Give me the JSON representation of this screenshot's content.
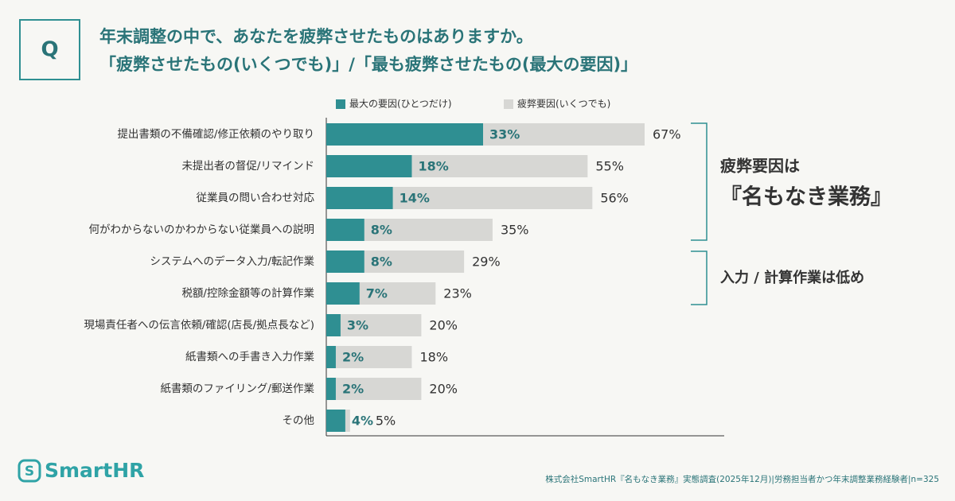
{
  "chart_data": {
    "type": "bar",
    "q_label": "Q",
    "title": "年末調整の中で、あなたを疲弊させたものはありますか。",
    "subtitle": "「疲弊させたもの(いくつでも)」/「最も疲弊させたもの(最大の要因)」",
    "categories": [
      "提出書類の不備確認/修正依頼のやり取り",
      "未提出者の督促/リマインド",
      "従業員の問い合わせ対応",
      "何がわからないのかわからない従業員への説明",
      "システムへのデータ入力/転記作業",
      "税額/控除金額等の計算作業",
      "現場責任者への伝言依頼/確認(店長/拠点長など)",
      "紙書類への手書き入力作業",
      "紙書類のファイリング/郵送作業",
      "その他"
    ],
    "series": [
      {
        "name": "最大の要因(ひとつだけ)",
        "color": "#2f8f92",
        "values": [
          33,
          18,
          14,
          8,
          8,
          7,
          3,
          2,
          2,
          4
        ],
        "value_labels": [
          "33%",
          "18%",
          "14%",
          "8%",
          "8%",
          "7%",
          "3%",
          "2%",
          "2%",
          "4%"
        ]
      },
      {
        "name": "疲弊要因(いくつでも)",
        "color": "#d7d7d4",
        "values": [
          67,
          55,
          56,
          35,
          29,
          23,
          20,
          18,
          20,
          5
        ],
        "value_labels": [
          "67%",
          "55%",
          "56%",
          "35%",
          "29%",
          "23%",
          "20%",
          "18%",
          "20%",
          "5%"
        ]
      }
    ],
    "annotations": [
      "疲弊要因は",
      "『名もなき業務』",
      "入力 / 計算作業は低め"
    ],
    "logo": "SmartHR",
    "source": "株式会社SmartHR『名もなき業務』実態調査(2025年12月)|労務担当者かつ年末調整業務経験者|n=325"
  }
}
